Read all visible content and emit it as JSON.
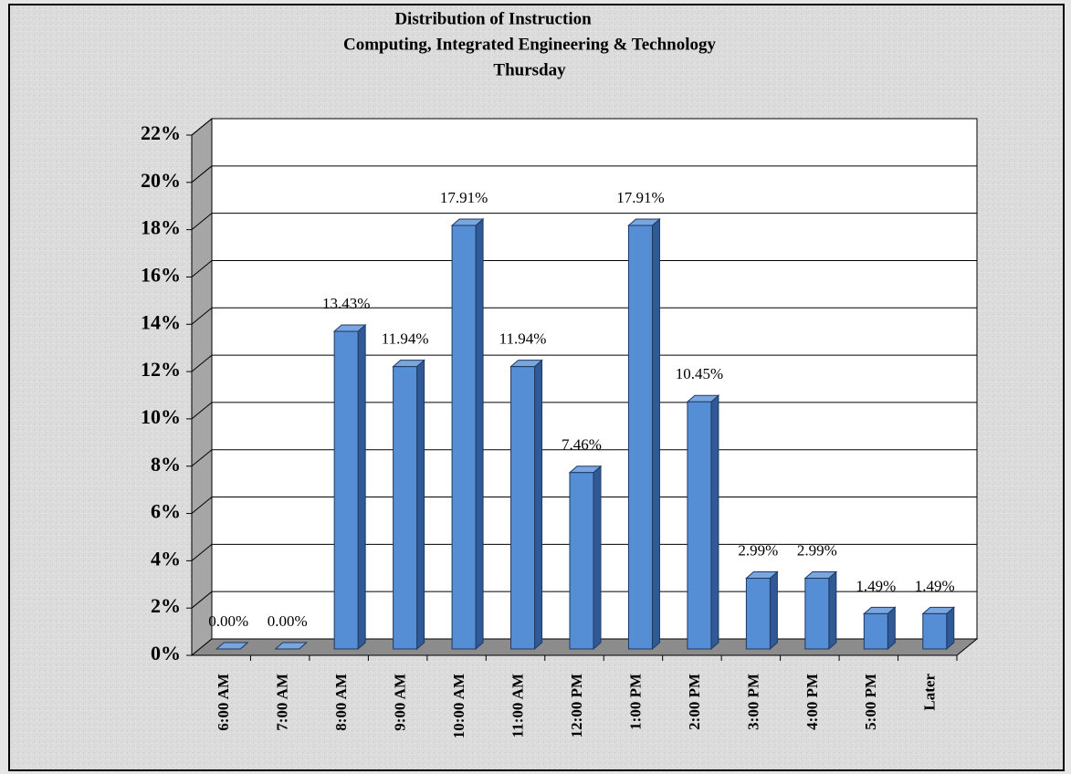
{
  "chart_data": {
    "type": "bar3d",
    "title": [
      "Distribution of Instruction",
      "Computing, Integrated Engineering & Technology",
      "Thursday"
    ],
    "categories": [
      "6:00 AM",
      "7:00 AM",
      "8:00 AM",
      "9:00 AM",
      "10:00 AM",
      "11:00 AM",
      "12:00 PM",
      "1:00 PM",
      "2:00 PM",
      "3:00 PM",
      "4:00 PM",
      "5:00 PM",
      "Later"
    ],
    "values": [
      0,
      0,
      13.43,
      11.94,
      17.91,
      11.94,
      7.46,
      17.91,
      10.45,
      2.99,
      2.99,
      1.49,
      1.49
    ],
    "value_labels": [
      "0.00%",
      "0.00%",
      "13.43%",
      "11.94%",
      "17.91%",
      "11.94%",
      "7.46%",
      "17.91%",
      "10.45%",
      "2.99%",
      "2.99%",
      "1.49%",
      "1.49%"
    ],
    "color": "#558ed5",
    "ylim": [
      0,
      22
    ],
    "yticks": [
      {
        "value": 0,
        "label": "0%"
      },
      {
        "value": 2,
        "label": "2%"
      },
      {
        "value": 4,
        "label": "4%"
      },
      {
        "value": 6,
        "label": "6%"
      },
      {
        "value": 8,
        "label": "8%"
      },
      {
        "value": 10,
        "label": "10%"
      },
      {
        "value": 12,
        "label": "12%"
      },
      {
        "value": 14,
        "label": "14%"
      },
      {
        "value": 16,
        "label": "16%"
      },
      {
        "value": 18,
        "label": "18%"
      },
      {
        "value": 20,
        "label": "20%"
      },
      {
        "value": 22,
        "label": "22%"
      }
    ],
    "grid": true
  }
}
